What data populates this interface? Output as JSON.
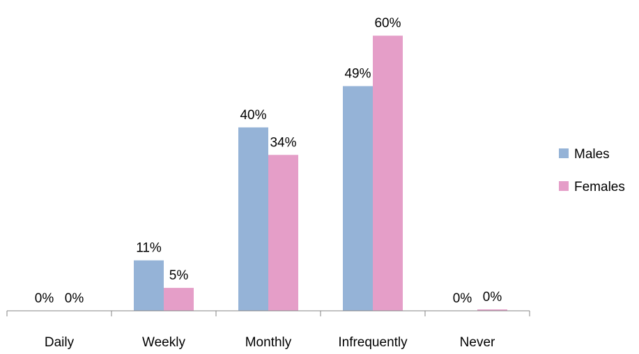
{
  "chart_data": {
    "type": "bar",
    "title": "",
    "xlabel": "",
    "ylabel": "",
    "ylim": [
      0,
      60
    ],
    "grid": false,
    "legend_position": "right",
    "categories": [
      "Daily",
      "Weekly",
      "Monthly",
      "Infrequently",
      "Never"
    ],
    "series": [
      {
        "name": "Males",
        "color": "#95b3d7",
        "values": [
          0,
          11,
          40,
          49,
          0
        ],
        "labels": [
          "0%",
          "11%",
          "40%",
          "49%",
          "0%"
        ]
      },
      {
        "name": "Females",
        "color": "#e59ec8",
        "values": [
          0,
          5,
          34,
          60,
          0.3
        ],
        "labels": [
          "0%",
          "5%",
          "34%",
          "60%",
          "0%"
        ]
      }
    ]
  }
}
